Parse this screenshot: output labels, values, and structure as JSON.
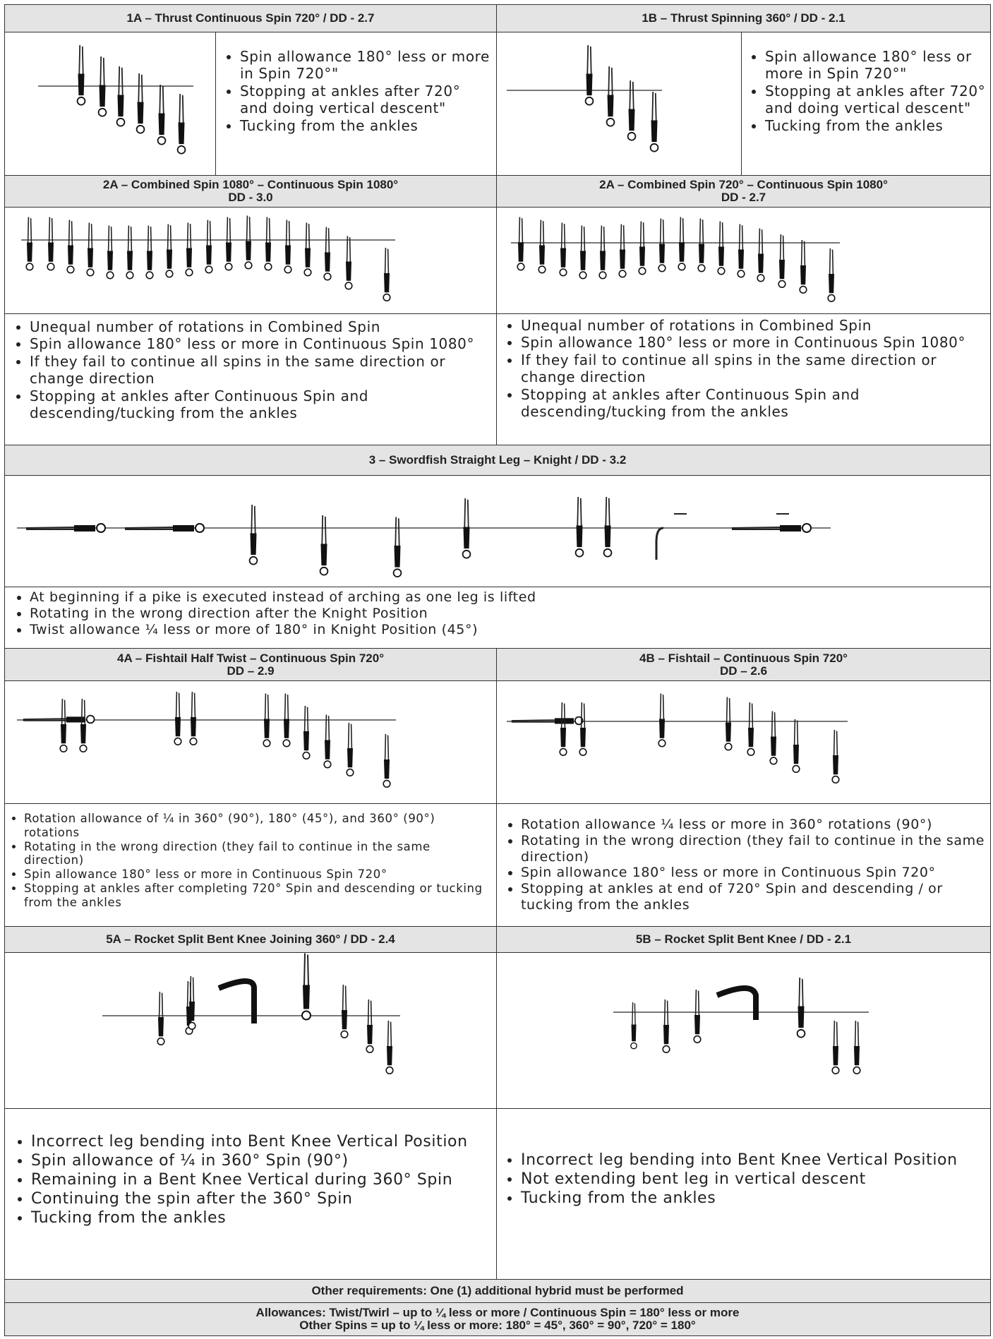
{
  "sections": [
    {
      "items": [
        {
          "title": "1A – Thrust Continuous Spin 720° / DD - 2.7",
          "bullets": [
            "Spin allowance 180° less or more in Spin 720°\"",
            "Stopping at ankles after 720° and doing vertical descent\"",
            "Tucking from the ankles"
          ]
        },
        {
          "title": "1B – Thrust Spinning 360° / DD - 2.1",
          "bullets": [
            "Spin allowance 180° less or more in Spin 720°\"",
            "Stopping at ankles after 720° and doing vertical descent\"",
            "Tucking from the ankles"
          ]
        }
      ]
    },
    {
      "items": [
        {
          "title": "2A – Combined Spin 1080° – Continuous Spin 1080°",
          "subtitle": "DD - 3.0",
          "bullets": [
            "Unequal number of rotations in Combined Spin",
            "Spin allowance 180° less or more in Continuous Spin 1080°",
            "If they fail to continue all spins in the same direction or change direction",
            "Stopping at ankles after Continuous Spin and descending/tucking from the ankles"
          ]
        },
        {
          "title": "2A – Combined Spin 720° – Continuous Spin 1080°",
          "subtitle": "DD - 2.7",
          "bullets": [
            "Unequal number of rotations in Combined Spin",
            "Spin allowance 180° less or more in Continuous Spin 1080°",
            "If they fail to continue all spins in the same direction or change direction",
            "Stopping at ankles after Continuous Spin and descending/tucking from the ankles"
          ]
        }
      ]
    },
    {
      "items": [
        {
          "title": "3 – Swordfish Straight Leg – Knight / DD - 3.2",
          "bullets": [
            "At beginning if a pike is executed instead of arching as one leg is lifted",
            "Rotating in the wrong direction after the Knight Position",
            "Twist allowance ¼ less or more of 180° in Knight Position (45°)"
          ]
        }
      ]
    },
    {
      "items": [
        {
          "title": "4A – Fishtail Half Twist – Continuous Spin 720°",
          "subtitle": "DD – 2.9",
          "bullets": [
            "Rotation allowance of ¼ in 360° (90°), 180° (45°), and 360° (90°) rotations",
            "Rotating in the wrong direction (they fail to continue in the same direction)",
            "Spin allowance 180° less or more in Continuous Spin 720°",
            "Stopping at ankles after completing 720° Spin and descending or tucking from the ankles"
          ]
        },
        {
          "title": "4B – Fishtail – Continuous Spin 720°",
          "subtitle": "DD – 2.6",
          "bullets": [
            "Rotation allowance ¼ less or more in 360° rotations (90°)",
            "Rotating in the wrong direction (they fail to continue in the same direction)",
            "Spin allowance 180° less or more in Continuous Spin 720°",
            "Stopping at ankles at end of 720° Spin and descending / or tucking from the ankles"
          ]
        }
      ]
    },
    {
      "items": [
        {
          "title": "5A – Rocket Split Bent Knee Joining 360° / DD - 2.4",
          "bullets": [
            "Incorrect leg bending into Bent Knee Vertical Position",
            "Spin allowance of ¼ in 360° Spin (90°)",
            "Remaining in a Bent Knee Vertical during 360° Spin",
            "Continuing the spin after the 360° Spin",
            "Tucking from the ankles"
          ]
        },
        {
          "title": "5B – Rocket Split Bent Knee / DD - 2.1",
          "bullets": [
            "Incorrect leg bending into Bent Knee Vertical Position",
            "Not extending bent leg in vertical descent",
            "Tucking from the ankles"
          ]
        }
      ]
    }
  ],
  "other_requirements": "Other requirements: One (1) additional hybrid must be performed",
  "allowances": [
    "Allowances: Twist/Twirl – up to ¼ less or more / Continuous Spin = 180° less or more",
    "Other Spins = up to ¼ less or more: 180° = 45°, 360° = 90°, 720° = 180°"
  ]
}
